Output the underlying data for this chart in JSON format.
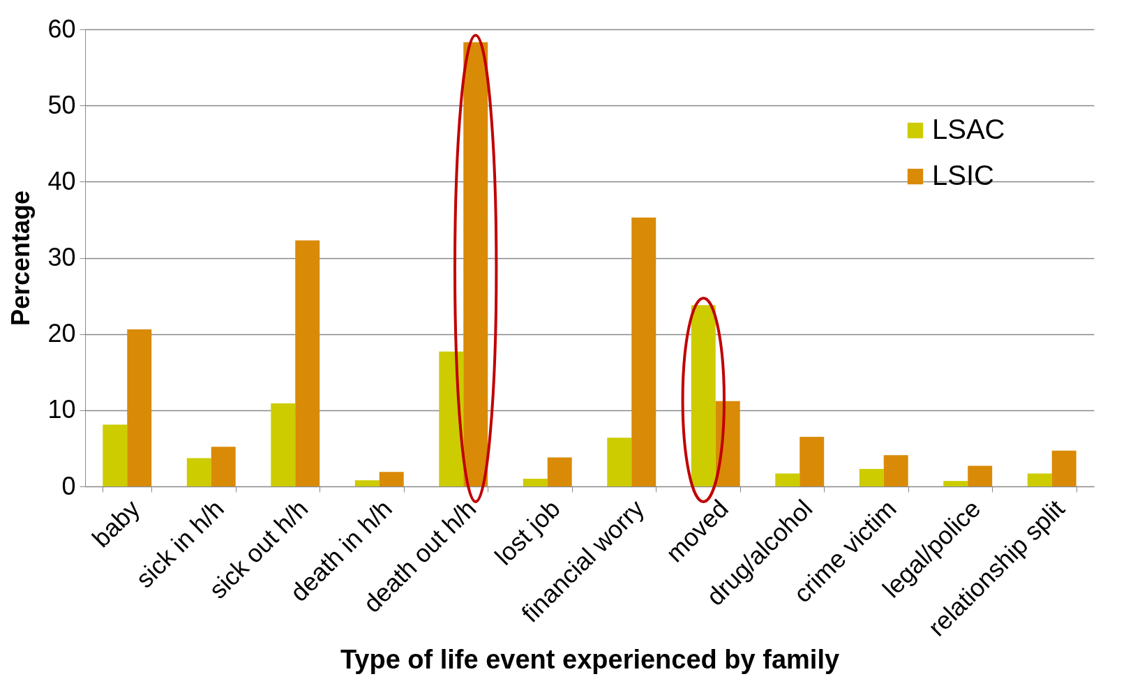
{
  "chart_data": {
    "type": "bar",
    "xlabel": "Type of life event experienced by family",
    "ylabel": "Percentage",
    "categories": [
      "baby",
      "sick in h/h",
      "sick out h/h",
      "death in h/h",
      "death out h/h",
      "lost job",
      "financial worry",
      "moved",
      "drug/alcohol",
      "crime victim",
      "legal/police",
      "relationship split"
    ],
    "series": [
      {
        "name": "LSAC",
        "color": "#cccc00",
        "values": [
          8.1,
          3.7,
          10.9,
          0.8,
          17.7,
          1.0,
          6.4,
          23.8,
          1.7,
          2.3,
          0.7,
          1.7
        ]
      },
      {
        "name": "LSIC",
        "color": "#d98a06",
        "values": [
          20.6,
          5.2,
          32.3,
          1.9,
          58.3,
          3.8,
          35.3,
          11.2,
          6.5,
          4.1,
          2.7,
          4.7
        ]
      }
    ],
    "ylim": [
      0,
      60
    ],
    "yticks": [
      0,
      10,
      20,
      30,
      40,
      50,
      60
    ],
    "grid": "y",
    "legend": "top right"
  }
}
